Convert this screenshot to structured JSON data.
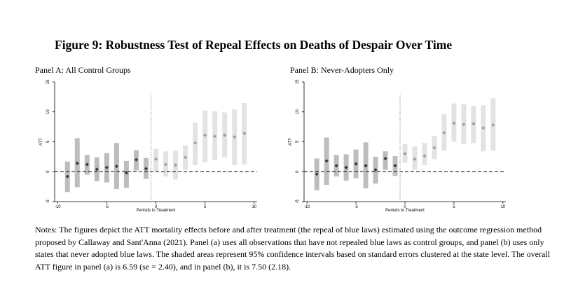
{
  "figure": {
    "title": "Figure 9: Robustness Test of Repeal Effects on Deaths of Despair Over Time",
    "notes": "Notes: The figures depict the ATT mortality effects before and after treatment (the repeal of blue laws) estimated using the outcome regression method proposed by Callaway and Sant'Anna (2021). Panel (a) uses all observations that have not repealed blue laws as control groups, and panel (b) uses only states that never adopted blue laws. The shaded areas represent 95% confidence intervals based on standard errors clustered at the state level. The overall ATT figure in panel (a) is 6.59 (se = 2.40), and in panel (b), it is 7.50 (2.18)."
  },
  "colors": {
    "pre_ci": "#bdbdbd",
    "post_ci": "#e3e3e3",
    "pre_point": "#3a3a3a",
    "post_point": "#9e9e9e",
    "axis": "#000000"
  },
  "chart_data": [
    {
      "type": "scatter",
      "title": "Panel A: All Control Groups",
      "xlabel": "Periods to Treatment",
      "ylabel": "ATT",
      "xlim": [
        -10.3,
        10.3
      ],
      "ylim": [
        -5,
        15
      ],
      "xticks": [
        -10,
        -5,
        0,
        5,
        10
      ],
      "yticks": [
        -5,
        0,
        5,
        10,
        15
      ],
      "xtick_labels": [
        "-10",
        "-5",
        "0",
        "5",
        "10"
      ],
      "ytick_labels": [
        "-5",
        "0",
        "5",
        "10",
        "15"
      ],
      "treatment_line_x": -0.5,
      "zero_line_y": 0,
      "grid": false,
      "pre": {
        "x": [
          -9,
          -8,
          -7,
          -6,
          -5,
          -4,
          -3,
          -2,
          -1
        ],
        "y": [
          -0.8,
          1.4,
          1.2,
          0.4,
          0.7,
          0.9,
          -0.2,
          2.0,
          0.5
        ],
        "lower": [
          -3.4,
          -2.6,
          -0.5,
          -1.6,
          -1.8,
          -2.9,
          -2.7,
          0.2,
          -1.2
        ],
        "upper": [
          1.7,
          5.6,
          2.8,
          2.4,
          3.1,
          4.8,
          1.8,
          3.6,
          2.3
        ]
      },
      "post": {
        "x": [
          0,
          1,
          2,
          3,
          4,
          5,
          6,
          7,
          8,
          9
        ],
        "y": [
          2.1,
          1.2,
          1.1,
          2.4,
          4.8,
          6.1,
          5.9,
          6.1,
          5.8,
          6.4
        ],
        "lower": [
          0.1,
          -0.8,
          -1.3,
          0.3,
          1.1,
          1.6,
          1.9,
          2.4,
          1.1,
          1.2
        ],
        "upper": [
          3.8,
          3.4,
          3.5,
          4.4,
          8.2,
          10.2,
          10.1,
          9.9,
          10.4,
          11.5
        ]
      }
    },
    {
      "type": "scatter",
      "title": "Panel B: Never-Adopters Only",
      "xlabel": "Periods to Treatment",
      "ylabel": "ATT",
      "xlim": [
        -10.3,
        10.3
      ],
      "ylim": [
        -5,
        15
      ],
      "xticks": [
        -10,
        -5,
        0,
        5,
        10
      ],
      "yticks": [
        -5,
        0,
        5,
        10,
        15
      ],
      "xtick_labels": [
        "-10",
        "-5",
        "0",
        "5",
        "10"
      ],
      "ytick_labels": [
        "-5",
        "0",
        "5",
        "10",
        "15"
      ],
      "treatment_line_x": -0.5,
      "zero_line_y": 0,
      "grid": false,
      "pre": {
        "x": [
          -9,
          -8,
          -7,
          -6,
          -5,
          -4,
          -3,
          -2,
          -1
        ],
        "y": [
          -0.4,
          1.8,
          1.0,
          0.7,
          1.3,
          1.0,
          0.3,
          2.2,
          1.0
        ],
        "lower": [
          -3.1,
          -2.2,
          -0.8,
          -1.5,
          -1.1,
          -2.8,
          -2.0,
          0.3,
          -0.7
        ],
        "upper": [
          2.2,
          5.7,
          2.8,
          2.9,
          3.7,
          4.9,
          2.5,
          3.4,
          2.6
        ]
      },
      "post": {
        "x": [
          0,
          1,
          2,
          3,
          4,
          5,
          6,
          7,
          8,
          9
        ],
        "y": [
          3.0,
          2.1,
          2.6,
          4.0,
          6.5,
          8.1,
          7.9,
          8.0,
          7.3,
          7.8
        ],
        "lower": [
          1.5,
          0.3,
          1.1,
          2.1,
          3.5,
          5.0,
          4.6,
          4.8,
          3.4,
          3.5
        ],
        "upper": [
          4.6,
          4.2,
          4.8,
          6.0,
          9.6,
          11.4,
          11.3,
          11.0,
          11.1,
          12.3
        ]
      }
    }
  ]
}
